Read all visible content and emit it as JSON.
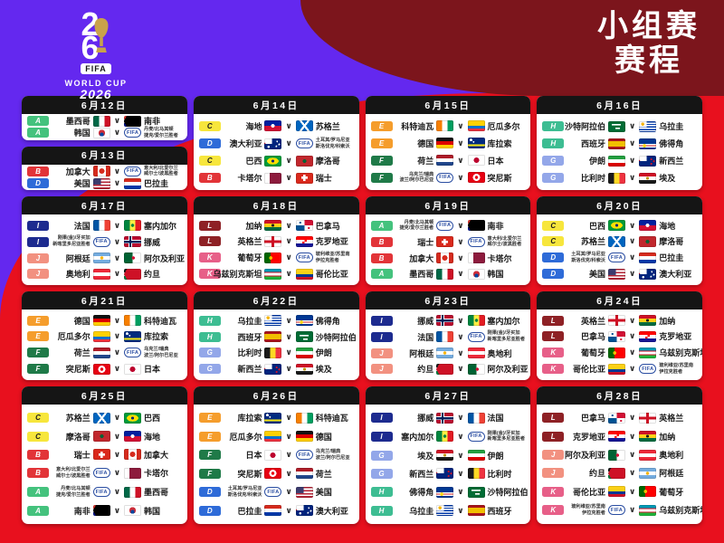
{
  "header": {
    "title_line1": "小组赛",
    "title_line2": "赛程"
  },
  "logo": {
    "digit_top": "2",
    "digit_bottom": "6",
    "fifa": "FIFA",
    "world_cup": "WORLD CUP",
    "year": "2026",
    "trophy_icon": "world-cup-trophy"
  },
  "separator": "∨",
  "fifa_badge_label": "FIFA",
  "colors": {
    "background_purple": "#6428ef",
    "background_red": "#e8101e",
    "background_maroon": "#7c151c",
    "card_header_black": "#151515",
    "card_white": "#ffffff"
  },
  "group_colors": {
    "A": "#44c27d",
    "B": "#e23438",
    "C": "#f7e63c",
    "D": "#2e6bd8",
    "E": "#f59d2c",
    "F": "#1f7a48",
    "G": "#93a7e9",
    "H": "#3dbd92",
    "I": "#1d2b8f",
    "J": "#f29180",
    "K": "#e75f88",
    "L": "#8e2125"
  },
  "group_letter_colors": {
    "C": "#1b1b1b"
  },
  "flags": {
    "mx": "mexico",
    "za": "south-africa",
    "kr": "korea",
    "ca": "canada",
    "us": "usa",
    "py": "paraguay",
    "ht": "haiti",
    "sct": "scotland",
    "au": "australia",
    "br": "brazil",
    "ma": "morocco",
    "qa": "qatar",
    "ch": "switzerland",
    "ci": "ivory-coast",
    "ec": "ecuador",
    "de": "germany",
    "cw": "curacao",
    "nl": "netherlands",
    "jp": "japan",
    "tn": "tunisia",
    "sa": "saudi-arabia",
    "uy": "uruguay",
    "es": "spain",
    "cv": "cape-verde",
    "ir": "iran",
    "nz": "new-zealand",
    "be": "belgium",
    "eg": "egypt",
    "fr": "france",
    "sn": "senegal",
    "no": "norway",
    "ar": "argentina",
    "dz": "algeria",
    "at": "austria",
    "jo": "jordan",
    "gh": "ghana",
    "pa": "panama",
    "eng": "england",
    "hr": "croatia",
    "pt": "portugal",
    "uz": "uzbekistan",
    "co": "colombia",
    "fifa": "fifa-playoff"
  },
  "days": [
    {
      "date": "6月12日",
      "matches": [
        {
          "g": "A",
          "h": {
            "n": "墨西哥",
            "f": "mx"
          },
          "a": {
            "n": "南非",
            "f": "za"
          }
        },
        {
          "g": "A",
          "h": {
            "n": "韩国",
            "f": "kr"
          },
          "a": {
            "po": [
              "丹麦/北马其顿",
              "捷克/爱尔兰胜者"
            ],
            "f": "fifa"
          }
        }
      ]
    },
    {
      "date": "6月13日",
      "matches": [
        {
          "g": "B",
          "h": {
            "n": "加拿大",
            "f": "ca"
          },
          "a": {
            "po": [
              "意大利/北爱尔兰",
              "威尔士/波黑胜者"
            ],
            "f": "fifa"
          }
        },
        {
          "g": "D",
          "h": {
            "n": "美国",
            "f": "us"
          },
          "a": {
            "n": "巴拉圭",
            "f": "py"
          }
        }
      ]
    },
    {
      "date": "6月14日",
      "matches": [
        {
          "g": "C",
          "h": {
            "n": "海地",
            "f": "ht"
          },
          "a": {
            "n": "苏格兰",
            "f": "sct"
          }
        },
        {
          "g": "D",
          "h": {
            "n": "澳大利亚",
            "f": "au"
          },
          "a": {
            "po": [
              "土耳其/罗马尼亚",
              "斯洛伐克/科索沃"
            ],
            "f": "fifa"
          }
        },
        {
          "g": "C",
          "h": {
            "n": "巴西",
            "f": "br"
          },
          "a": {
            "n": "摩洛哥",
            "f": "ma"
          }
        },
        {
          "g": "B",
          "h": {
            "n": "卡塔尔",
            "f": "qa"
          },
          "a": {
            "n": "瑞士",
            "f": "ch"
          }
        }
      ]
    },
    {
      "date": "6月15日",
      "matches": [
        {
          "g": "E",
          "h": {
            "n": "科特迪瓦",
            "f": "ci"
          },
          "a": {
            "n": "厄瓜多尔",
            "f": "ec"
          }
        },
        {
          "g": "E",
          "h": {
            "n": "德国",
            "f": "de"
          },
          "a": {
            "n": "库拉索",
            "f": "cw"
          }
        },
        {
          "g": "F",
          "h": {
            "n": "荷兰",
            "f": "nl"
          },
          "a": {
            "n": "日本",
            "f": "jp"
          }
        },
        {
          "g": "F",
          "h": {
            "po": [
              "乌克兰/瑞典",
              "波兰/阿尔巴尼亚"
            ],
            "f": "fifa"
          },
          "a": {
            "n": "突尼斯",
            "f": "tn"
          }
        }
      ]
    },
    {
      "date": "6月16日",
      "matches": [
        {
          "g": "H",
          "h": {
            "n": "沙特阿拉伯",
            "f": "sa"
          },
          "a": {
            "n": "乌拉圭",
            "f": "uy"
          }
        },
        {
          "g": "H",
          "h": {
            "n": "西班牙",
            "f": "es"
          },
          "a": {
            "n": "佛得角",
            "f": "cv"
          }
        },
        {
          "g": "G",
          "h": {
            "n": "伊朗",
            "f": "ir"
          },
          "a": {
            "n": "新西兰",
            "f": "nz"
          }
        },
        {
          "g": "G",
          "h": {
            "n": "比利时",
            "f": "be"
          },
          "a": {
            "n": "埃及",
            "f": "eg"
          }
        }
      ]
    },
    {
      "date": "6月17日",
      "matches": [
        {
          "g": "I",
          "h": {
            "n": "法国",
            "f": "fr"
          },
          "a": {
            "n": "塞内加尔",
            "f": "sn"
          }
        },
        {
          "g": "I",
          "h": {
            "po": [
              "刚果(金)/牙买加",
              "新喀里多尼亚胜者"
            ],
            "f": "fifa"
          },
          "a": {
            "n": "挪威",
            "f": "no"
          }
        },
        {
          "g": "J",
          "h": {
            "n": "阿根廷",
            "f": "ar"
          },
          "a": {
            "n": "阿尔及利亚",
            "f": "dz"
          }
        },
        {
          "g": "J",
          "h": {
            "n": "奥地利",
            "f": "at"
          },
          "a": {
            "n": "约旦",
            "f": "jo"
          }
        }
      ]
    },
    {
      "date": "6月18日",
      "matches": [
        {
          "g": "L",
          "h": {
            "n": "加纳",
            "f": "gh"
          },
          "a": {
            "n": "巴拿马",
            "f": "pa"
          }
        },
        {
          "g": "L",
          "h": {
            "n": "英格兰",
            "f": "eng"
          },
          "a": {
            "n": "克罗地亚",
            "f": "hr"
          }
        },
        {
          "g": "K",
          "h": {
            "n": "葡萄牙",
            "f": "pt"
          },
          "a": {
            "po": [
              "玻利维亚/苏里南",
              "伊拉克胜者"
            ],
            "f": "fifa"
          }
        },
        {
          "g": "K",
          "h": {
            "n": "乌兹别克斯坦",
            "f": "uz"
          },
          "a": {
            "n": "哥伦比亚",
            "f": "co"
          }
        }
      ]
    },
    {
      "date": "6月19日",
      "matches": [
        {
          "g": "A",
          "h": {
            "po": [
              "丹麦/北马其顿",
              "捷克/爱尔兰胜者"
            ],
            "f": "fifa"
          },
          "a": {
            "n": "南非",
            "f": "za"
          }
        },
        {
          "g": "B",
          "h": {
            "n": "瑞士",
            "f": "ch"
          },
          "a": {
            "po": [
              "意大利/北爱尔兰",
              "威尔士/波黑胜者"
            ],
            "f": "fifa"
          }
        },
        {
          "g": "B",
          "h": {
            "n": "加拿大",
            "f": "ca"
          },
          "a": {
            "n": "卡塔尔",
            "f": "qa"
          }
        },
        {
          "g": "A",
          "h": {
            "n": "墨西哥",
            "f": "mx"
          },
          "a": {
            "n": "韩国",
            "f": "kr"
          }
        }
      ]
    },
    {
      "date": "6月20日",
      "matches": [
        {
          "g": "C",
          "h": {
            "n": "巴西",
            "f": "br"
          },
          "a": {
            "n": "海地",
            "f": "ht"
          }
        },
        {
          "g": "C",
          "h": {
            "n": "苏格兰",
            "f": "sct"
          },
          "a": {
            "n": "摩洛哥",
            "f": "ma"
          }
        },
        {
          "g": "D",
          "h": {
            "po": [
              "土耳其/罗马尼亚",
              "斯洛伐克/科索沃"
            ],
            "f": "fifa"
          },
          "a": {
            "n": "巴拉圭",
            "f": "py"
          }
        },
        {
          "g": "D",
          "h": {
            "n": "美国",
            "f": "us"
          },
          "a": {
            "n": "澳大利亚",
            "f": "au"
          }
        }
      ]
    },
    {
      "date": "6月21日",
      "matches": [
        {
          "g": "E",
          "h": {
            "n": "德国",
            "f": "de"
          },
          "a": {
            "n": "科特迪瓦",
            "f": "ci"
          }
        },
        {
          "g": "E",
          "h": {
            "n": "厄瓜多尔",
            "f": "ec"
          },
          "a": {
            "n": "库拉索",
            "f": "cw"
          }
        },
        {
          "g": "F",
          "h": {
            "n": "荷兰",
            "f": "nl"
          },
          "a": {
            "po": [
              "乌克兰/瑞典",
              "波兰/阿尔巴尼亚"
            ],
            "f": "fifa"
          }
        },
        {
          "g": "F",
          "h": {
            "n": "突尼斯",
            "f": "tn"
          },
          "a": {
            "n": "日本",
            "f": "jp"
          }
        }
      ]
    },
    {
      "date": "6月22日",
      "matches": [
        {
          "g": "H",
          "h": {
            "n": "乌拉圭",
            "f": "uy"
          },
          "a": {
            "n": "佛得角",
            "f": "cv"
          }
        },
        {
          "g": "H",
          "h": {
            "n": "西班牙",
            "f": "es"
          },
          "a": {
            "n": "沙特阿拉伯",
            "f": "sa"
          }
        },
        {
          "g": "G",
          "h": {
            "n": "比利时",
            "f": "be"
          },
          "a": {
            "n": "伊朗",
            "f": "ir"
          }
        },
        {
          "g": "G",
          "h": {
            "n": "新西兰",
            "f": "nz"
          },
          "a": {
            "n": "埃及",
            "f": "eg"
          }
        }
      ]
    },
    {
      "date": "6月23日",
      "matches": [
        {
          "g": "I",
          "h": {
            "n": "挪威",
            "f": "no"
          },
          "a": {
            "n": "塞内加尔",
            "f": "sn"
          }
        },
        {
          "g": "I",
          "h": {
            "n": "法国",
            "f": "fr"
          },
          "a": {
            "po": [
              "刚果(金)/牙买加",
              "新喀里多尼亚胜者"
            ],
            "f": "fifa"
          }
        },
        {
          "g": "J",
          "h": {
            "n": "阿根廷",
            "f": "ar"
          },
          "a": {
            "n": "奥地利",
            "f": "at"
          }
        },
        {
          "g": "J",
          "h": {
            "n": "约旦",
            "f": "jo"
          },
          "a": {
            "n": "阿尔及利亚",
            "f": "dz"
          }
        }
      ]
    },
    {
      "date": "6月24日",
      "matches": [
        {
          "g": "L",
          "h": {
            "n": "英格兰",
            "f": "eng"
          },
          "a": {
            "n": "加纳",
            "f": "gh"
          }
        },
        {
          "g": "L",
          "h": {
            "n": "巴拿马",
            "f": "pa"
          },
          "a": {
            "n": "克罗地亚",
            "f": "hr"
          }
        },
        {
          "g": "K",
          "h": {
            "n": "葡萄牙",
            "f": "pt"
          },
          "a": {
            "n": "乌兹别克斯坦",
            "f": "uz"
          }
        },
        {
          "g": "K",
          "h": {
            "n": "哥伦比亚",
            "f": "co"
          },
          "a": {
            "po": [
              "玻利维亚/苏里南",
              "伊拉克胜者"
            ],
            "f": "fifa"
          }
        }
      ]
    },
    {
      "date": "6月25日",
      "matches": [
        {
          "g": "C",
          "h": {
            "n": "苏格兰",
            "f": "sct"
          },
          "a": {
            "n": "巴西",
            "f": "br"
          }
        },
        {
          "g": "C",
          "h": {
            "n": "摩洛哥",
            "f": "ma"
          },
          "a": {
            "n": "海地",
            "f": "ht"
          }
        },
        {
          "g": "B",
          "h": {
            "n": "瑞士",
            "f": "ch"
          },
          "a": {
            "n": "加拿大",
            "f": "ca"
          }
        },
        {
          "g": "B",
          "h": {
            "po": [
              "意大利/北爱尔兰",
              "威尔士/波黑胜者"
            ],
            "f": "fifa"
          },
          "a": {
            "n": "卡塔尔",
            "f": "qa"
          }
        },
        {
          "g": "A",
          "h": {
            "po": [
              "丹麦/北马其顿",
              "捷克/爱尔兰胜者"
            ],
            "f": "fifa"
          },
          "a": {
            "n": "墨西哥",
            "f": "mx"
          }
        },
        {
          "g": "A",
          "h": {
            "n": "南非",
            "f": "za"
          },
          "a": {
            "n": "韩国",
            "f": "kr"
          }
        }
      ]
    },
    {
      "date": "6月26日",
      "matches": [
        {
          "g": "E",
          "h": {
            "n": "库拉索",
            "f": "cw"
          },
          "a": {
            "n": "科特迪瓦",
            "f": "ci"
          }
        },
        {
          "g": "E",
          "h": {
            "n": "厄瓜多尔",
            "f": "ec"
          },
          "a": {
            "n": "德国",
            "f": "de"
          }
        },
        {
          "g": "F",
          "h": {
            "n": "日本",
            "f": "jp"
          },
          "a": {
            "po": [
              "乌克兰/瑞典",
              "波兰/阿尔巴尼亚"
            ],
            "f": "fifa"
          }
        },
        {
          "g": "F",
          "h": {
            "n": "突尼斯",
            "f": "tn"
          },
          "a": {
            "n": "荷兰",
            "f": "nl"
          }
        },
        {
          "g": "D",
          "h": {
            "po": [
              "土耳其/罗马尼亚",
              "斯洛伐克/科索沃"
            ],
            "f": "fifa"
          },
          "a": {
            "n": "美国",
            "f": "us"
          }
        },
        {
          "g": "D",
          "h": {
            "n": "巴拉圭",
            "f": "py"
          },
          "a": {
            "n": "澳大利亚",
            "f": "au"
          }
        }
      ]
    },
    {
      "date": "6月27日",
      "matches": [
        {
          "g": "I",
          "h": {
            "n": "挪威",
            "f": "no"
          },
          "a": {
            "n": "法国",
            "f": "fr"
          }
        },
        {
          "g": "I",
          "h": {
            "n": "塞内加尔",
            "f": "sn"
          },
          "a": {
            "po": [
              "刚果(金)/牙买加",
              "新喀里多尼亚胜者"
            ],
            "f": "fifa"
          }
        },
        {
          "g": "G",
          "h": {
            "n": "埃及",
            "f": "eg"
          },
          "a": {
            "n": "伊朗",
            "f": "ir"
          }
        },
        {
          "g": "G",
          "h": {
            "n": "新西兰",
            "f": "nz"
          },
          "a": {
            "n": "比利时",
            "f": "be"
          }
        },
        {
          "g": "H",
          "h": {
            "n": "佛得角",
            "f": "cv"
          },
          "a": {
            "n": "沙特阿拉伯",
            "f": "sa"
          }
        },
        {
          "g": "H",
          "h": {
            "n": "乌拉圭",
            "f": "uy"
          },
          "a": {
            "n": "西班牙",
            "f": "es"
          }
        }
      ]
    },
    {
      "date": "6月28日",
      "matches": [
        {
          "g": "L",
          "h": {
            "n": "巴拿马",
            "f": "pa"
          },
          "a": {
            "n": "英格兰",
            "f": "eng"
          }
        },
        {
          "g": "L",
          "h": {
            "n": "克罗地亚",
            "f": "hr"
          },
          "a": {
            "n": "加纳",
            "f": "gh"
          }
        },
        {
          "g": "J",
          "h": {
            "n": "阿尔及利亚",
            "f": "dz"
          },
          "a": {
            "n": "奥地利",
            "f": "at"
          }
        },
        {
          "g": "J",
          "h": {
            "n": "约旦",
            "f": "jo"
          },
          "a": {
            "n": "阿根廷",
            "f": "ar"
          }
        },
        {
          "g": "K",
          "h": {
            "n": "哥伦比亚",
            "f": "co"
          },
          "a": {
            "n": "葡萄牙",
            "f": "pt"
          }
        },
        {
          "g": "K",
          "h": {
            "po": [
              "玻利维亚/苏里南",
              "伊拉克胜者"
            ],
            "f": "fifa"
          },
          "a": {
            "n": "乌兹别克斯坦",
            "f": "uz"
          }
        }
      ]
    }
  ]
}
